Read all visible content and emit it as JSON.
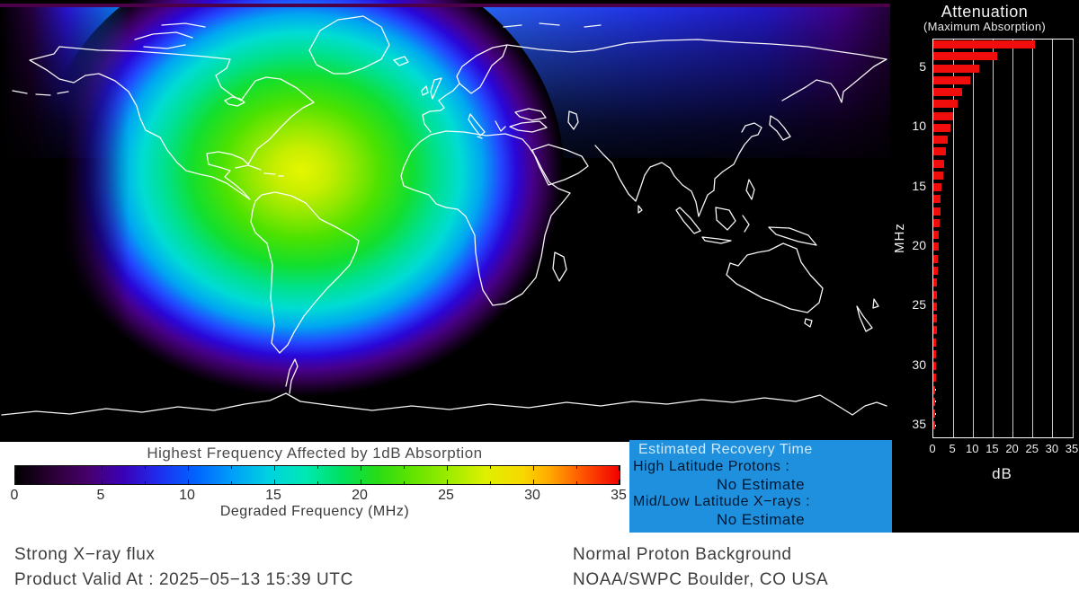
{
  "map": {
    "description_colors": {
      "night_background": "#000000",
      "coastline": "#ffffff",
      "top_border_line": "#4c004a",
      "blob_core": "#e4f600",
      "blob_green": "#2ae000",
      "blob_cyan": "#00dcd4",
      "blob_blue": "#2248ff",
      "blob_purple": "#47008c"
    }
  },
  "recovery_box": {
    "bg": "#1e90dd",
    "title": "Estimated Recovery Time",
    "line1": "High Latitude Protons :",
    "value1": "No Estimate",
    "line2": "Mid/Low Latitude X−rays :",
    "value2": "No Estimate"
  },
  "footer": {
    "status_left": "Strong X−ray flux",
    "valid_at": "Product Valid At : 2025−05−13 15:39 UTC",
    "status_right": "Normal Proton Background",
    "agency": "NOAA/SWPC Boulder, CO USA"
  },
  "chart_data": [
    {
      "type": "bar",
      "orientation": "horizontal",
      "title": "Attenuation",
      "subtitle": "(Maximum Absorption)",
      "xlabel": "dB",
      "ylabel": "MHz",
      "xlim": [
        0,
        35
      ],
      "ylim": [
        2,
        35.5
      ],
      "x_ticks": [
        0,
        5,
        10,
        15,
        20,
        25,
        30,
        35
      ],
      "y_ticks": [
        5,
        10,
        15,
        20,
        25,
        30,
        35
      ],
      "grid": true,
      "gridline_color": "#c9c9c9",
      "bar_color": "#f20d0d",
      "categories_mhz": [
        3,
        4,
        5,
        6,
        7,
        8,
        9,
        10,
        11,
        12,
        13,
        14,
        15,
        16,
        17,
        18,
        19,
        20,
        21,
        22,
        23,
        24,
        25,
        26,
        27,
        28,
        29,
        30,
        31,
        32,
        33,
        34,
        35
      ],
      "values_db": [
        25.5,
        16.0,
        11.5,
        9.2,
        7.3,
        6.0,
        5.0,
        4.2,
        3.6,
        3.1,
        2.7,
        2.4,
        2.1,
        1.9,
        1.7,
        1.5,
        1.4,
        1.3,
        1.2,
        1.1,
        1.0,
        0.9,
        0.9,
        0.8,
        0.8,
        0.7,
        0.7,
        0.6,
        0.6,
        0.5,
        0.5,
        0.5,
        0.4
      ]
    },
    {
      "type": "colorbar-scale",
      "title": "Highest Frequency Affected by 1dB Absorption",
      "xlabel": "Degraded Frequency (MHz)",
      "range": [
        0,
        35
      ],
      "ticks": [
        0,
        5,
        10,
        15,
        20,
        25,
        30,
        35
      ],
      "minor_tick_step": 2.5,
      "gradient_stops": [
        [
          0.0,
          "#000000"
        ],
        [
          0.06,
          "#2a0033"
        ],
        [
          0.12,
          "#47006b"
        ],
        [
          0.18,
          "#3a00b8"
        ],
        [
          0.24,
          "#1e30f0"
        ],
        [
          0.3,
          "#0064ff"
        ],
        [
          0.36,
          "#00a0f8"
        ],
        [
          0.42,
          "#00d2e0"
        ],
        [
          0.48,
          "#00e8b4"
        ],
        [
          0.54,
          "#00e060"
        ],
        [
          0.6,
          "#28dc14"
        ],
        [
          0.66,
          "#64e400"
        ],
        [
          0.72,
          "#a0ec00"
        ],
        [
          0.78,
          "#dff000"
        ],
        [
          0.84,
          "#f8d800"
        ],
        [
          0.885,
          "#ffa800"
        ],
        [
          0.935,
          "#ff5a00"
        ],
        [
          1.0,
          "#f20000"
        ]
      ]
    }
  ]
}
